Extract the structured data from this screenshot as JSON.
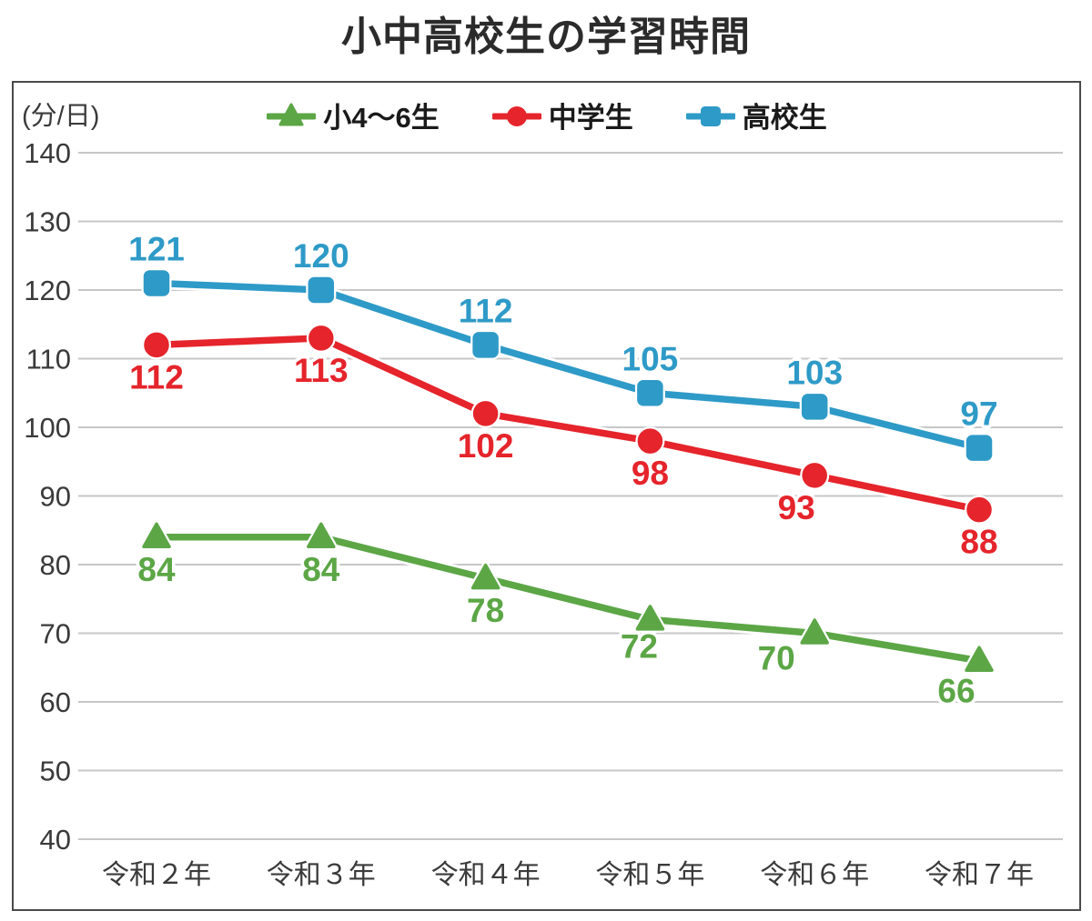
{
  "title": "小中高校生の学習時間",
  "chart_data": {
    "type": "line",
    "title": "小中高校生の学習時間",
    "unit_label": "(分/日)",
    "categories": [
      "令和２年",
      "令和３年",
      "令和４年",
      "令和５年",
      "令和６年",
      "令和７年"
    ],
    "series": [
      {
        "name": "小4～6生",
        "color": "#5CA646",
        "marker": "triangle",
        "values": [
          84,
          84,
          78,
          72,
          70,
          66
        ],
        "data_label_position": "below"
      },
      {
        "name": "中学生",
        "color": "#E5242B",
        "marker": "circle",
        "values": [
          112,
          113,
          102,
          98,
          93,
          88
        ],
        "data_label_position": "below"
      },
      {
        "name": "高校生",
        "color": "#2E9AC7",
        "marker": "square",
        "values": [
          121,
          120,
          112,
          105,
          103,
          97
        ],
        "data_label_position": "above"
      }
    ],
    "ylim": [
      40,
      140
    ],
    "ytick_step": 10,
    "yticks": [
      140,
      130,
      120,
      110,
      100,
      90,
      80,
      70,
      60,
      50,
      40
    ],
    "grid": "horizontal-only",
    "legend_position": "top-center",
    "data_labels": "on"
  },
  "colors": {
    "background": "#FFFFFF",
    "frame_border": "#4A4A4A",
    "gridline": "#C7C7C7",
    "axis_text": "#3A3A3A",
    "title_text": "#2B2B2B",
    "legend_text": "#1A1A1A"
  }
}
